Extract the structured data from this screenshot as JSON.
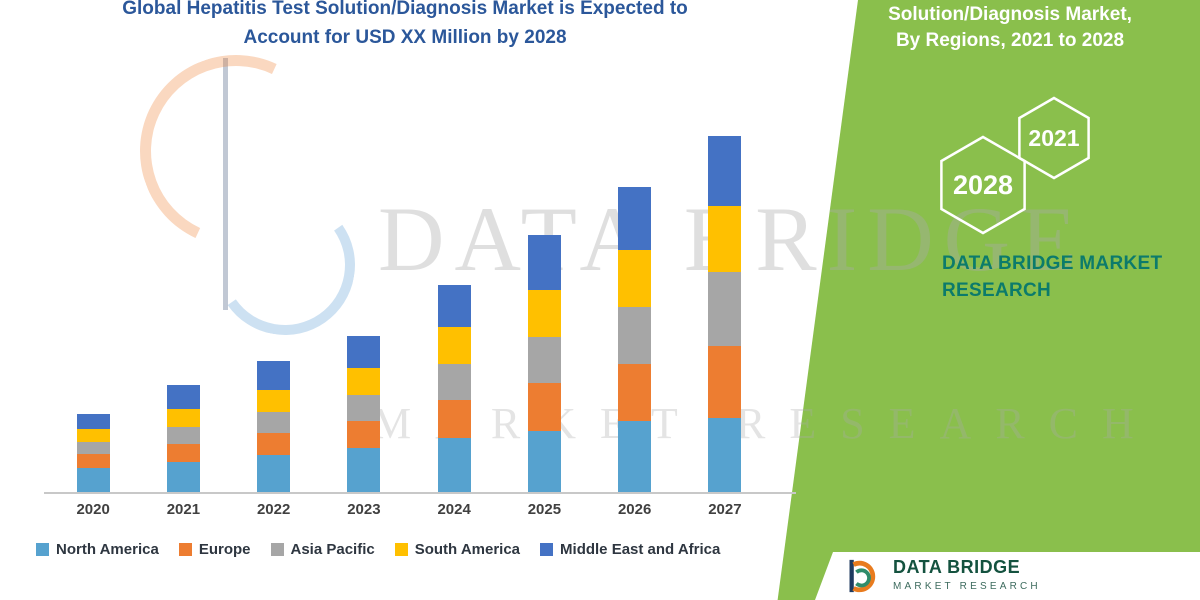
{
  "header": {
    "title_line1": "Global Hepatitis Test Solution/Diagnosis Market is Expected to",
    "title_line2": "Account for USD XX Million by 2028"
  },
  "side_panel": {
    "heading_line1": "Solution/Diagnosis Market,",
    "heading_line2": "By Regions, 2021 to 2028",
    "hexagons": [
      {
        "label": "2028"
      },
      {
        "label": "2021"
      }
    ],
    "brand_line1": "DATA BRIDGE MARKET",
    "brand_line2": "RESEARCH"
  },
  "watermark": {
    "line1": "DATA BRIDGE",
    "line2": "MARKET RESEARCH"
  },
  "footer_logo": {
    "name": "DATA BRIDGE",
    "subname": "MARKET RESEARCH"
  },
  "colors": {
    "title_blue": "#2B579A",
    "panel_green": "#8ABF4C",
    "brand_teal": "#0C7B6B",
    "logo_text": "#14523F",
    "axis_gray": "#C8C8C8",
    "label_gray": "#404040",
    "legend_text": "#2E3640"
  },
  "chart_data": {
    "type": "bar",
    "stacked": true,
    "title": "Global Hepatitis Test Solution/Diagnosis Market is Expected to Account for USD XX Million by 2028",
    "xlabel": "",
    "ylabel": "",
    "grid": false,
    "legend_position": "bottom",
    "y_axis_labels_visible": false,
    "value_note": "No numeric axis or data labels are shown in the image; series values are relative estimates read from bar heights",
    "categories": [
      "2020",
      "2021",
      "2022",
      "2023",
      "2024",
      "2025",
      "2026",
      "2027"
    ],
    "series": [
      {
        "name": "North America",
        "color": "#56A2CF",
        "values": [
          25,
          31,
          38,
          45,
          55,
          62,
          72,
          75
        ]
      },
      {
        "name": "Europe",
        "color": "#ED7D31",
        "values": [
          14,
          18,
          22,
          27,
          38,
          48,
          57,
          72
        ]
      },
      {
        "name": "Asia Pacific",
        "color": "#A6A6A6",
        "values": [
          12,
          17,
          21,
          26,
          36,
          46,
          57,
          74
        ]
      },
      {
        "name": "South America",
        "color": "#FFC000",
        "values": [
          13,
          18,
          22,
          27,
          37,
          47,
          57,
          66
        ]
      },
      {
        "name": "Middle East and Africa",
        "color": "#4472C4",
        "values": [
          15,
          24,
          29,
          32,
          42,
          55,
          63,
          70
        ]
      }
    ]
  }
}
